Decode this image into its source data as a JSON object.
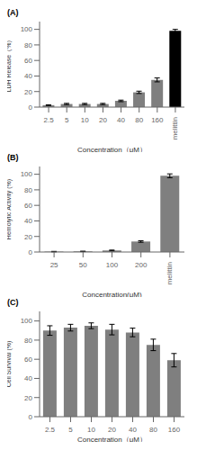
{
  "chart_data": [
    {
      "type": "bar",
      "title": "(A)",
      "categories": [
        "2.5",
        "5",
        "10",
        "20",
        "40",
        "80",
        "160",
        "melittin"
      ],
      "values": [
        2.5,
        4.0,
        4.0,
        4.0,
        8.0,
        19.0,
        35.0,
        98.0
      ],
      "errors": [
        0.5,
        0.8,
        0.8,
        0.8,
        1.0,
        1.5,
        2.5,
        2.0
      ],
      "colors": [
        "#7f7f7f",
        "#7f7f7f",
        "#7f7f7f",
        "#7f7f7f",
        "#7f7f7f",
        "#7f7f7f",
        "#7f7f7f",
        "#000000"
      ],
      "ylabel": "LDH Release（%）",
      "xlabel": "Concentration（μM）",
      "ylim": [
        0,
        110
      ],
      "yticks": [
        0,
        20,
        40,
        60,
        80,
        100
      ],
      "grid": false
    },
    {
      "type": "bar",
      "title": "(B)",
      "categories": [
        "25",
        "50",
        "100",
        "200",
        "melittin"
      ],
      "values": [
        0.5,
        0.8,
        2.0,
        13.5,
        98.0
      ],
      "errors": [
        0.3,
        0.3,
        0.5,
        1.0,
        2.5
      ],
      "colors": [
        "#7f7f7f",
        "#7f7f7f",
        "#7f7f7f",
        "#7f7f7f",
        "#7f7f7f"
      ],
      "ylabel": "Hemolytic Activity (%)",
      "xlabel": "Concentration(μM)",
      "ylim": [
        0,
        110
      ],
      "yticks": [
        0,
        20,
        40,
        60,
        80,
        100
      ],
      "grid": false
    },
    {
      "type": "bar",
      "title": "(C)",
      "categories": [
        "2.5",
        "5",
        "10",
        "20",
        "40",
        "80",
        "160"
      ],
      "values": [
        90.0,
        93.0,
        95.0,
        91.0,
        88.0,
        75.0,
        59.0
      ],
      "errors": [
        5.0,
        3.5,
        3.0,
        5.5,
        4.5,
        6.0,
        7.0
      ],
      "colors": [
        "#7f7f7f",
        "#7f7f7f",
        "#7f7f7f",
        "#7f7f7f",
        "#7f7f7f",
        "#7f7f7f",
        "#7f7f7f"
      ],
      "ylabel": "Cell Survival (%)",
      "xlabel": "Concentration（μM）",
      "ylim": [
        0,
        110
      ],
      "yticks": [
        0,
        20,
        40,
        60,
        80,
        100
      ],
      "grid": false
    }
  ]
}
